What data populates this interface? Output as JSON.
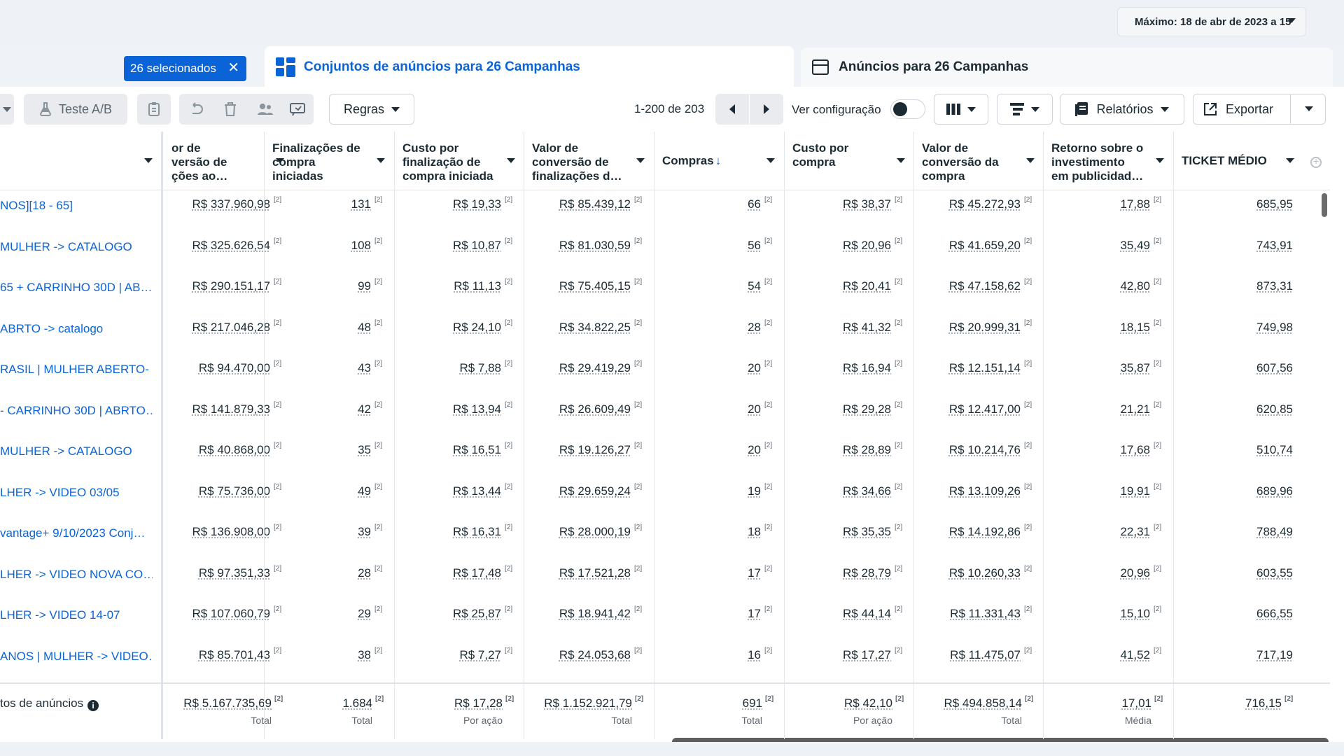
{
  "date_range": "Máximo: 18 de abr de 2023 a 15",
  "selection_chip": "26 selecionados",
  "selection_close": "✕",
  "tabs": {
    "adsets": "Conjuntos de anúncios para 26 Campanhas",
    "ads": "Anúncios para 26 Campanhas"
  },
  "toolbar": {
    "ab_test": "Teste A/B",
    "rules": "Regras",
    "pager": "1-200 de 203",
    "view_setup": "Ver configuração",
    "reports": "Relatórios",
    "export": "Exportar"
  },
  "headers": [
    "or de\nversão de\nções ao…",
    "Finalizações de\ncompra\niniciadas",
    "Custo por\nfinalização de\ncompra iniciada",
    "Valor de\nconversão de\nfinalizações d…",
    "Compras",
    "Custo por\ncompra",
    "Valor de\nconversão da\ncompra",
    "Retorno sobre o\ninvestimento\nem publicidad…",
    "TICKET MÉDIO"
  ],
  "sort_arrow": "↓",
  "footnote_marker": "[2]",
  "rows": [
    {
      "name": "NOS][18 - 65]",
      "v": [
        "R$ 337.960,98",
        "131",
        "R$ 19,33",
        "R$ 85.439,12",
        "66",
        "R$ 38,37",
        "R$ 45.272,93",
        "17,88",
        "685,95"
      ]
    },
    {
      "name": " MULHER -> CATALOGO",
      "v": [
        "R$ 325.626,54",
        "108",
        "R$ 10,87",
        "R$ 81.030,59",
        "56",
        "R$ 20,96",
        "R$ 41.659,20",
        "35,49",
        "743,91"
      ]
    },
    {
      "name": "65 + CARRINHO 30D | AB…",
      "v": [
        "R$ 290.151,17",
        "99",
        "R$ 11,13",
        "R$ 75.405,15",
        "54",
        "R$ 20,41",
        "R$ 47.158,62",
        "42,80",
        "873,31"
      ]
    },
    {
      "name": " ABRTO -> catalogo",
      "v": [
        "R$ 217.046,28",
        "48",
        "R$ 24,10",
        "R$ 34.822,25",
        "28",
        "R$ 41,32",
        "R$ 20.999,31",
        "18,15",
        "749,98"
      ]
    },
    {
      "name": "RASIL | MULHER ABERTO- …",
      "v": [
        "R$ 94.470,00",
        "43",
        "R$ 7,88",
        "R$ 29.419,29",
        "20",
        "R$ 16,94",
        "R$ 12.151,14",
        "35,87",
        "607,56"
      ]
    },
    {
      "name": "- CARRINHO 30D | ABRTO…",
      "v": [
        "R$ 141.879,33",
        "42",
        "R$ 13,94",
        "R$ 26.609,49",
        "20",
        "R$ 29,28",
        "R$ 12.417,00",
        "21,21",
        "620,85"
      ]
    },
    {
      "name": " MULHER -> CATALOGO",
      "v": [
        "R$ 40.868,00",
        "35",
        "R$ 16,51",
        "R$ 19.126,27",
        "20",
        "R$ 28,89",
        "R$ 10.214,76",
        "17,68",
        "510,74"
      ]
    },
    {
      "name": "LHER -> VIDEO 03/05",
      "v": [
        "R$ 75.736,00",
        "49",
        "R$ 13,44",
        "R$ 29.659,24",
        "19",
        "R$ 34,66",
        "R$ 13.109,26",
        "19,91",
        "689,96"
      ]
    },
    {
      "name": "vantage+ 9/10/2023 Conj…",
      "v": [
        "R$ 136.908,00",
        "39",
        "R$ 16,31",
        "R$ 28.000,19",
        "18",
        "R$ 35,35",
        "R$ 14.192,86",
        "22,31",
        "788,49"
      ]
    },
    {
      "name": "LHER -> VIDEO NOVA CO…",
      "v": [
        "R$ 97.351,33",
        "28",
        "R$ 17,48",
        "R$ 17.521,28",
        "17",
        "R$ 28,79",
        "R$ 10.260,33",
        "20,96",
        "603,55"
      ]
    },
    {
      "name": "LHER -> VIDEO 14-07",
      "v": [
        "R$ 107.060,79",
        "29",
        "R$ 25,87",
        "R$ 18.941,42",
        "17",
        "R$ 44,14",
        "R$ 11.331,43",
        "15,10",
        "666,55"
      ]
    },
    {
      "name": "ANOS | MULHER -> VIDEO…",
      "v": [
        "R$ 85.701,43",
        "38",
        "R$ 7,27",
        "R$ 24.053,68",
        "16",
        "R$ 17,27",
        "R$ 11.475,07",
        "41,52",
        "717,19"
      ]
    }
  ],
  "totals": {
    "label": "tos de anúncios",
    "info_icon": "i",
    "values": [
      "R$ 5.167.735,69",
      "1.684",
      "R$ 17,28",
      "R$ 1.152.921,79",
      "691",
      "R$ 42,10",
      "R$ 494.858,14",
      "17,01",
      "716,15"
    ],
    "subs": [
      "Total",
      "Total",
      "Por ação",
      "Total",
      "Total",
      "Por ação",
      "Total",
      "Média",
      ""
    ]
  },
  "colors": {
    "accent": "#0a64d8",
    "text": "#1c2b33"
  }
}
